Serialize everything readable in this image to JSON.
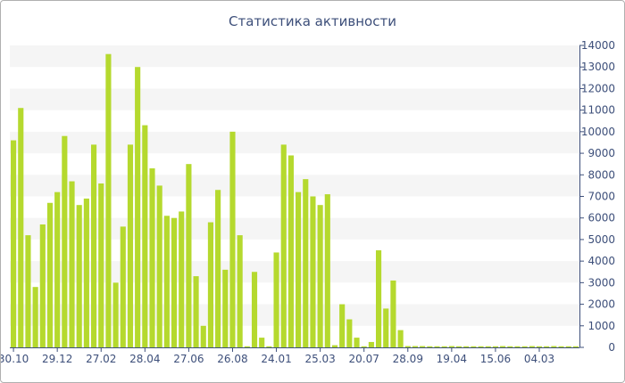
{
  "chart_data": {
    "type": "bar",
    "title": "Статистика активности",
    "xlabel": "",
    "ylabel": "",
    "ylim": [
      0,
      14000
    ],
    "y_ticks": [
      0,
      1000,
      2000,
      3000,
      4000,
      5000,
      6000,
      7000,
      8000,
      9000,
      10000,
      11000,
      12000,
      13000,
      14000
    ],
    "y_axis_position": "right",
    "grid": "horizontal alternating bands",
    "legend": "none",
    "bar_color": "#b5d92e",
    "band_color": "#f5f5f5",
    "x_tick_labels": [
      {
        "index": 0,
        "label": "30.10"
      },
      {
        "index": 6,
        "label": "29.12"
      },
      {
        "index": 12,
        "label": "27.02"
      },
      {
        "index": 18,
        "label": "28.04"
      },
      {
        "index": 24,
        "label": "27.06"
      },
      {
        "index": 30,
        "label": "26.08"
      },
      {
        "index": 36,
        "label": "24.01"
      },
      {
        "index": 42,
        "label": "25.03"
      },
      {
        "index": 48,
        "label": "20.07"
      },
      {
        "index": 54,
        "label": "28.09"
      },
      {
        "index": 60,
        "label": "19.04"
      },
      {
        "index": 66,
        "label": "15.06"
      },
      {
        "index": 72,
        "label": "04.03"
      }
    ],
    "values": [
      9600,
      11100,
      5200,
      2800,
      5700,
      6700,
      7200,
      9800,
      7700,
      6600,
      6900,
      9400,
      7600,
      13600,
      3000,
      5600,
      9400,
      13000,
      10300,
      8300,
      7500,
      6100,
      6000,
      6300,
      8500,
      3300,
      1000,
      5800,
      7300,
      3600,
      10000,
      5200,
      50,
      3500,
      450,
      50,
      4400,
      9400,
      8900,
      7200,
      7800,
      7000,
      6600,
      7100,
      100,
      2000,
      1300,
      450,
      50,
      250,
      4500,
      1800,
      3100,
      800,
      60,
      60,
      60,
      50,
      50,
      50,
      60,
      50,
      50,
      50,
      50,
      50,
      50,
      60,
      50,
      50,
      50,
      60,
      50,
      50,
      60,
      50,
      50,
      50
    ]
  }
}
